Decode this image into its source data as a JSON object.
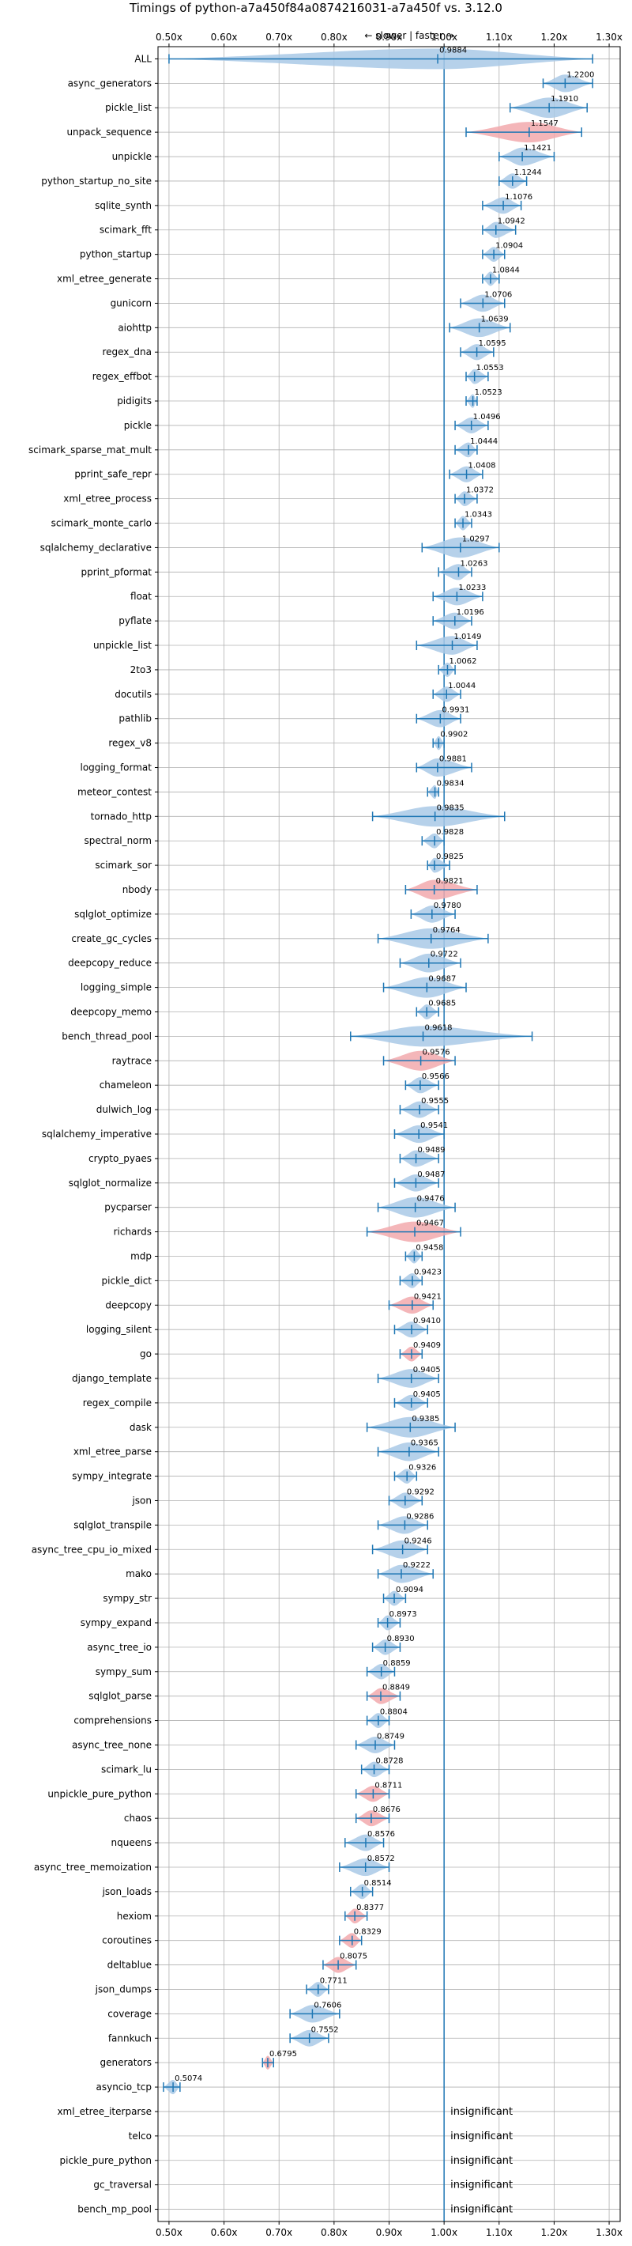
{
  "chart_data": {
    "type": "violin",
    "title": "Timings of python-a7a450f84a0874216031-a7a450f vs. 3.12.0",
    "direction_note": "← slower | faster →",
    "xlim": [
      0.48,
      1.32
    ],
    "x_ticks": [
      0.5,
      0.6,
      0.7,
      0.8,
      0.9,
      1.0,
      1.1,
      1.2,
      1.3
    ],
    "x_tick_labels": [
      "0.50x",
      "0.60x",
      "0.70x",
      "0.80x",
      "0.90x",
      "1.00x",
      "1.10x",
      "1.20x",
      "1.30x"
    ],
    "grid": true,
    "reference_line": 1.0,
    "colors": {
      "faster": "#a9c9e6",
      "slower": "#f2a9ad",
      "errorbar": "#1f77b4",
      "reference": "#1f77b4",
      "grid": "#b0b0b0"
    },
    "insignificant_text": "insignificant",
    "benchmarks": [
      {
        "name": "ALL",
        "value": 0.9884,
        "lo": 0.5,
        "hi": 1.27,
        "color": "faster"
      },
      {
        "name": "async_generators",
        "value": 1.22,
        "lo": 1.18,
        "hi": 1.27,
        "color": "faster"
      },
      {
        "name": "pickle_list",
        "value": 1.191,
        "lo": 1.12,
        "hi": 1.26,
        "color": "faster"
      },
      {
        "name": "unpack_sequence",
        "value": 1.1547,
        "lo": 1.04,
        "hi": 1.25,
        "color": "slower"
      },
      {
        "name": "unpickle",
        "value": 1.1421,
        "lo": 1.1,
        "hi": 1.2,
        "color": "faster"
      },
      {
        "name": "python_startup_no_site",
        "value": 1.1244,
        "lo": 1.1,
        "hi": 1.15,
        "color": "faster"
      },
      {
        "name": "sqlite_synth",
        "value": 1.1076,
        "lo": 1.07,
        "hi": 1.14,
        "color": "faster"
      },
      {
        "name": "scimark_fft",
        "value": 1.0942,
        "lo": 1.07,
        "hi": 1.13,
        "color": "faster"
      },
      {
        "name": "python_startup",
        "value": 1.0904,
        "lo": 1.07,
        "hi": 1.11,
        "color": "faster"
      },
      {
        "name": "xml_etree_generate",
        "value": 1.0844,
        "lo": 1.07,
        "hi": 1.1,
        "color": "faster"
      },
      {
        "name": "gunicorn",
        "value": 1.0706,
        "lo": 1.03,
        "hi": 1.11,
        "color": "faster"
      },
      {
        "name": "aiohttp",
        "value": 1.0639,
        "lo": 1.01,
        "hi": 1.12,
        "color": "faster"
      },
      {
        "name": "regex_dna",
        "value": 1.0595,
        "lo": 1.03,
        "hi": 1.09,
        "color": "faster"
      },
      {
        "name": "regex_effbot",
        "value": 1.0553,
        "lo": 1.04,
        "hi": 1.08,
        "color": "faster"
      },
      {
        "name": "pidigits",
        "value": 1.0523,
        "lo": 1.04,
        "hi": 1.06,
        "color": "faster"
      },
      {
        "name": "pickle",
        "value": 1.0496,
        "lo": 1.02,
        "hi": 1.08,
        "color": "faster"
      },
      {
        "name": "scimark_sparse_mat_mult",
        "value": 1.0444,
        "lo": 1.02,
        "hi": 1.06,
        "color": "faster"
      },
      {
        "name": "pprint_safe_repr",
        "value": 1.0408,
        "lo": 1.01,
        "hi": 1.07,
        "color": "faster"
      },
      {
        "name": "xml_etree_process",
        "value": 1.0372,
        "lo": 1.02,
        "hi": 1.06,
        "color": "faster"
      },
      {
        "name": "scimark_monte_carlo",
        "value": 1.0343,
        "lo": 1.02,
        "hi": 1.05,
        "color": "faster"
      },
      {
        "name": "sqlalchemy_declarative",
        "value": 1.0297,
        "lo": 0.96,
        "hi": 1.1,
        "color": "faster"
      },
      {
        "name": "pprint_pformat",
        "value": 1.0263,
        "lo": 0.99,
        "hi": 1.05,
        "color": "faster"
      },
      {
        "name": "float",
        "value": 1.0233,
        "lo": 0.98,
        "hi": 1.07,
        "color": "faster"
      },
      {
        "name": "pyflate",
        "value": 1.0196,
        "lo": 0.98,
        "hi": 1.05,
        "color": "faster"
      },
      {
        "name": "unpickle_list",
        "value": 1.0149,
        "lo": 0.95,
        "hi": 1.06,
        "color": "faster"
      },
      {
        "name": "2to3",
        "value": 1.0062,
        "lo": 0.99,
        "hi": 1.02,
        "color": "faster"
      },
      {
        "name": "docutils",
        "value": 1.0044,
        "lo": 0.98,
        "hi": 1.03,
        "color": "faster"
      },
      {
        "name": "pathlib",
        "value": 0.9931,
        "lo": 0.95,
        "hi": 1.03,
        "color": "faster"
      },
      {
        "name": "regex_v8",
        "value": 0.9902,
        "lo": 0.98,
        "hi": 1.0,
        "color": "faster"
      },
      {
        "name": "logging_format",
        "value": 0.9881,
        "lo": 0.95,
        "hi": 1.05,
        "color": "faster"
      },
      {
        "name": "meteor_contest",
        "value": 0.9834,
        "lo": 0.97,
        "hi": 0.99,
        "color": "faster"
      },
      {
        "name": "tornado_http",
        "value": 0.9835,
        "lo": 0.87,
        "hi": 1.11,
        "color": "faster"
      },
      {
        "name": "spectral_norm",
        "value": 0.9828,
        "lo": 0.96,
        "hi": 1.0,
        "color": "faster"
      },
      {
        "name": "scimark_sor",
        "value": 0.9825,
        "lo": 0.97,
        "hi": 1.01,
        "color": "faster"
      },
      {
        "name": "nbody",
        "value": 0.9821,
        "lo": 0.93,
        "hi": 1.06,
        "color": "slower"
      },
      {
        "name": "sqlglot_optimize",
        "value": 0.978,
        "lo": 0.94,
        "hi": 1.02,
        "color": "faster"
      },
      {
        "name": "create_gc_cycles",
        "value": 0.9764,
        "lo": 0.88,
        "hi": 1.08,
        "color": "faster"
      },
      {
        "name": "deepcopy_reduce",
        "value": 0.9722,
        "lo": 0.92,
        "hi": 1.03,
        "color": "faster"
      },
      {
        "name": "logging_simple",
        "value": 0.9687,
        "lo": 0.89,
        "hi": 1.04,
        "color": "faster"
      },
      {
        "name": "deepcopy_memo",
        "value": 0.9685,
        "lo": 0.95,
        "hi": 0.99,
        "color": "faster"
      },
      {
        "name": "bench_thread_pool",
        "value": 0.9618,
        "lo": 0.83,
        "hi": 1.16,
        "color": "faster"
      },
      {
        "name": "raytrace",
        "value": 0.9576,
        "lo": 0.89,
        "hi": 1.02,
        "color": "slower"
      },
      {
        "name": "chameleon",
        "value": 0.9566,
        "lo": 0.93,
        "hi": 0.99,
        "color": "faster"
      },
      {
        "name": "dulwich_log",
        "value": 0.9555,
        "lo": 0.92,
        "hi": 0.99,
        "color": "faster"
      },
      {
        "name": "sqlalchemy_imperative",
        "value": 0.9541,
        "lo": 0.91,
        "hi": 1.0,
        "color": "faster"
      },
      {
        "name": "crypto_pyaes",
        "value": 0.9489,
        "lo": 0.92,
        "hi": 0.99,
        "color": "faster"
      },
      {
        "name": "sqlglot_normalize",
        "value": 0.9487,
        "lo": 0.91,
        "hi": 0.99,
        "color": "faster"
      },
      {
        "name": "pycparser",
        "value": 0.9476,
        "lo": 0.88,
        "hi": 1.02,
        "color": "faster"
      },
      {
        "name": "richards",
        "value": 0.9467,
        "lo": 0.86,
        "hi": 1.03,
        "color": "slower"
      },
      {
        "name": "mdp",
        "value": 0.9458,
        "lo": 0.93,
        "hi": 0.96,
        "color": "faster"
      },
      {
        "name": "pickle_dict",
        "value": 0.9423,
        "lo": 0.92,
        "hi": 0.96,
        "color": "faster"
      },
      {
        "name": "deepcopy",
        "value": 0.9421,
        "lo": 0.9,
        "hi": 0.98,
        "color": "slower"
      },
      {
        "name": "logging_silent",
        "value": 0.941,
        "lo": 0.91,
        "hi": 0.97,
        "color": "faster"
      },
      {
        "name": "go",
        "value": 0.9409,
        "lo": 0.92,
        "hi": 0.96,
        "color": "slower"
      },
      {
        "name": "django_template",
        "value": 0.9405,
        "lo": 0.88,
        "hi": 0.99,
        "color": "faster"
      },
      {
        "name": "regex_compile",
        "value": 0.9405,
        "lo": 0.91,
        "hi": 0.97,
        "color": "faster"
      },
      {
        "name": "dask",
        "value": 0.9385,
        "lo": 0.86,
        "hi": 1.02,
        "color": "faster"
      },
      {
        "name": "xml_etree_parse",
        "value": 0.9365,
        "lo": 0.88,
        "hi": 0.99,
        "color": "faster"
      },
      {
        "name": "sympy_integrate",
        "value": 0.9326,
        "lo": 0.91,
        "hi": 0.95,
        "color": "faster"
      },
      {
        "name": "json",
        "value": 0.9292,
        "lo": 0.9,
        "hi": 0.96,
        "color": "faster"
      },
      {
        "name": "sqlglot_transpile",
        "value": 0.9286,
        "lo": 0.88,
        "hi": 0.97,
        "color": "faster"
      },
      {
        "name": "async_tree_cpu_io_mixed",
        "value": 0.9246,
        "lo": 0.87,
        "hi": 0.97,
        "color": "faster"
      },
      {
        "name": "mako",
        "value": 0.9222,
        "lo": 0.88,
        "hi": 0.98,
        "color": "faster"
      },
      {
        "name": "sympy_str",
        "value": 0.9094,
        "lo": 0.89,
        "hi": 0.93,
        "color": "faster"
      },
      {
        "name": "sympy_expand",
        "value": 0.8973,
        "lo": 0.88,
        "hi": 0.92,
        "color": "faster"
      },
      {
        "name": "async_tree_io",
        "value": 0.893,
        "lo": 0.87,
        "hi": 0.92,
        "color": "faster"
      },
      {
        "name": "sympy_sum",
        "value": 0.8859,
        "lo": 0.86,
        "hi": 0.91,
        "color": "faster"
      },
      {
        "name": "sqlglot_parse",
        "value": 0.8849,
        "lo": 0.86,
        "hi": 0.92,
        "color": "slower"
      },
      {
        "name": "comprehensions",
        "value": 0.8804,
        "lo": 0.86,
        "hi": 0.9,
        "color": "faster"
      },
      {
        "name": "async_tree_none",
        "value": 0.8749,
        "lo": 0.84,
        "hi": 0.91,
        "color": "faster"
      },
      {
        "name": "scimark_lu",
        "value": 0.8728,
        "lo": 0.85,
        "hi": 0.9,
        "color": "faster"
      },
      {
        "name": "unpickle_pure_python",
        "value": 0.8711,
        "lo": 0.84,
        "hi": 0.9,
        "color": "slower"
      },
      {
        "name": "chaos",
        "value": 0.8676,
        "lo": 0.84,
        "hi": 0.9,
        "color": "slower"
      },
      {
        "name": "nqueens",
        "value": 0.8576,
        "lo": 0.82,
        "hi": 0.89,
        "color": "faster"
      },
      {
        "name": "async_tree_memoization",
        "value": 0.8572,
        "lo": 0.81,
        "hi": 0.9,
        "color": "faster"
      },
      {
        "name": "json_loads",
        "value": 0.8514,
        "lo": 0.83,
        "hi": 0.87,
        "color": "faster"
      },
      {
        "name": "hexiom",
        "value": 0.8377,
        "lo": 0.82,
        "hi": 0.86,
        "color": "slower"
      },
      {
        "name": "coroutines",
        "value": 0.8329,
        "lo": 0.81,
        "hi": 0.85,
        "color": "slower"
      },
      {
        "name": "deltablue",
        "value": 0.8075,
        "lo": 0.78,
        "hi": 0.84,
        "color": "slower"
      },
      {
        "name": "json_dumps",
        "value": 0.7711,
        "lo": 0.75,
        "hi": 0.79,
        "color": "faster"
      },
      {
        "name": "coverage",
        "value": 0.7606,
        "lo": 0.72,
        "hi": 0.81,
        "color": "faster"
      },
      {
        "name": "fannkuch",
        "value": 0.7552,
        "lo": 0.72,
        "hi": 0.79,
        "color": "faster"
      },
      {
        "name": "generators",
        "value": 0.6795,
        "lo": 0.67,
        "hi": 0.69,
        "color": "slower"
      },
      {
        "name": "asyncio_tcp",
        "value": 0.5074,
        "lo": 0.49,
        "hi": 0.52,
        "color": "faster"
      },
      {
        "name": "xml_etree_iterparse",
        "value": null,
        "insignificant": true
      },
      {
        "name": "telco",
        "value": null,
        "insignificant": true
      },
      {
        "name": "pickle_pure_python",
        "value": null,
        "insignificant": true
      },
      {
        "name": "gc_traversal",
        "value": null,
        "insignificant": true
      },
      {
        "name": "bench_mp_pool",
        "value": null,
        "insignificant": true
      }
    ]
  }
}
